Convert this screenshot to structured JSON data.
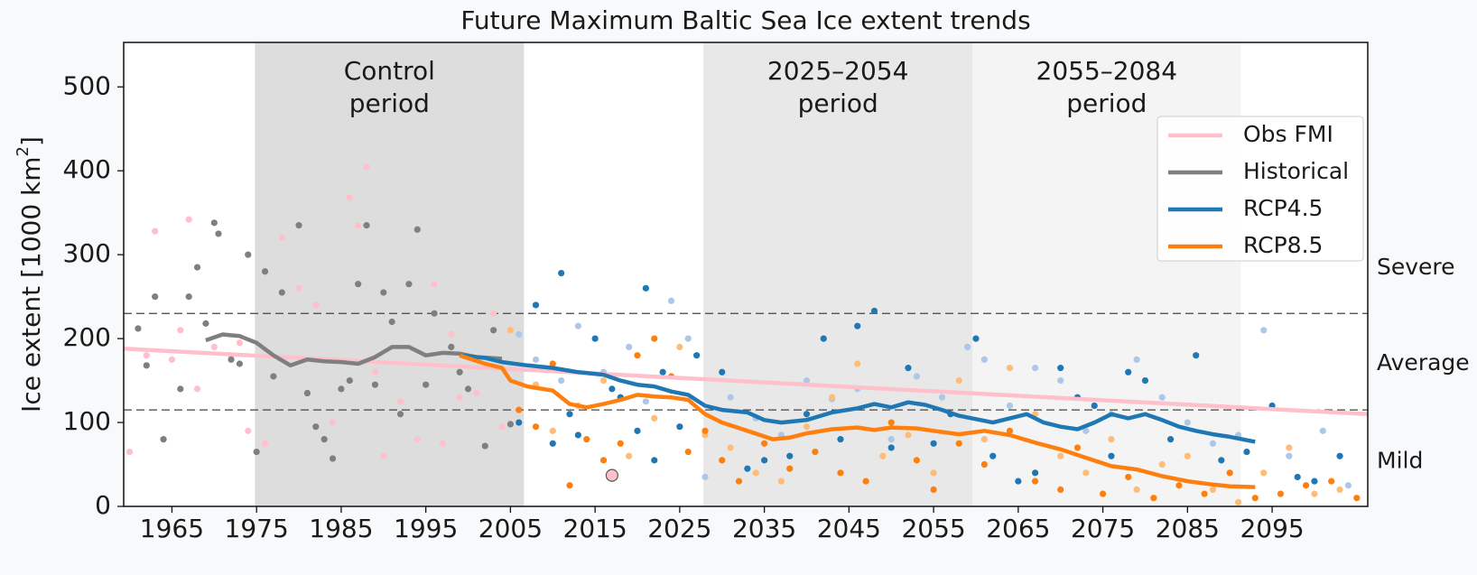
{
  "chart_data": {
    "type": "line",
    "title": "Future Maximum Baltic Sea Ice extent trends",
    "ylabel": [
      "Ice extent [1000 km",
      "2",
      "]"
    ],
    "xlim": [
      1959.3,
      2106.3
    ],
    "ylim": [
      0,
      553
    ],
    "xticks": [
      1965,
      1975,
      1985,
      1995,
      2005,
      2015,
      2025,
      2035,
      2045,
      2055,
      2065,
      2075,
      2085,
      2095
    ],
    "yticks": [
      0,
      100,
      200,
      300,
      400,
      500
    ],
    "legend": "upper right",
    "bands": [
      {
        "lines": [
          "Control",
          "period"
        ],
        "range": [
          1974.8,
          2006.6
        ],
        "color": "#dddddd"
      },
      {
        "lines": [
          "2025–2054",
          "period"
        ],
        "range": [
          2027.8,
          2059.6
        ],
        "color": "#e8e8e8"
      },
      {
        "lines": [
          "2055–2084",
          "period"
        ],
        "range": [
          2059.6,
          2091.3
        ],
        "color": "#f4f4f4"
      }
    ],
    "hlines": [
      230,
      115
    ],
    "regions": [
      {
        "label": "Severe",
        "value": 284
      },
      {
        "label": "Average",
        "value": 170
      },
      {
        "label": "Mild",
        "value": 53
      }
    ],
    "series": [
      {
        "name": "Obs FMI",
        "color": "#ffc0cb",
        "x": [
          1959.3,
          2106.3
        ],
        "values": [
          188,
          110
        ]
      },
      {
        "name": "Historical",
        "color": "#7f7f7f",
        "x": [
          1969,
          1971,
          1973,
          1975,
          1977,
          1979,
          1981,
          1983,
          1985,
          1987,
          1989,
          1991,
          1993,
          1995,
          1997,
          1999,
          2001,
          2004
        ],
        "values": [
          198,
          205,
          203,
          195,
          180,
          168,
          175,
          173,
          172,
          170,
          178,
          190,
          190,
          180,
          183,
          182,
          178,
          176
        ]
      },
      {
        "name": "RCP4.5",
        "color": "#1f77b4",
        "x": [
          1999,
          2002,
          2004,
          2007,
          2010,
          2013,
          2016,
          2018,
          2020,
          2022,
          2024,
          2026,
          2028,
          2030,
          2033,
          2035,
          2037,
          2040,
          2043,
          2046,
          2048,
          2050,
          2052,
          2054,
          2056,
          2058,
          2060,
          2062,
          2064,
          2066,
          2068,
          2070,
          2072,
          2074,
          2076,
          2078,
          2080,
          2082,
          2084,
          2086,
          2088,
          2090,
          2093
        ],
        "values": [
          180,
          177,
          172,
          168,
          165,
          160,
          157,
          150,
          145,
          143,
          137,
          133,
          120,
          115,
          112,
          103,
          100,
          103,
          112,
          117,
          122,
          118,
          124,
          121,
          115,
          108,
          104,
          100,
          105,
          110,
          100,
          95,
          92,
          100,
          110,
          105,
          110,
          103,
          95,
          90,
          86,
          83,
          77
        ]
      },
      {
        "name": "RCP8.5",
        "color": "#ff7f0e",
        "x": [
          1999,
          2002,
          2004,
          2005,
          2007,
          2010,
          2012,
          2014,
          2016,
          2018,
          2020,
          2022,
          2024,
          2026,
          2028,
          2030,
          2033,
          2036,
          2038,
          2040,
          2043,
          2046,
          2048,
          2050,
          2053,
          2055,
          2058,
          2061,
          2064,
          2067,
          2070,
          2073,
          2076,
          2079,
          2082,
          2085,
          2088,
          2090,
          2093
        ],
        "values": [
          180,
          170,
          165,
          150,
          143,
          138,
          122,
          118,
          122,
          127,
          133,
          131,
          130,
          127,
          110,
          100,
          90,
          80,
          82,
          87,
          92,
          94,
          91,
          94,
          93,
          90,
          86,
          90,
          85,
          76,
          68,
          58,
          48,
          44,
          36,
          30,
          26,
          24,
          23
        ]
      }
    ],
    "scatter": [
      {
        "color": "#ffc0cb",
        "x": [
          1960,
          1962,
          1963,
          1966,
          1967,
          1968,
          1970,
          1973,
          1974,
          1976,
          1978,
          1980,
          1982,
          1984,
          1986,
          1987,
          1988,
          1990,
          1992,
          1994,
          1996,
          1997,
          1999,
          2001,
          2003,
          2004,
          1972,
          1989,
          1998,
          1965
        ],
        "values": [
          65,
          180,
          328,
          210,
          342,
          140,
          190,
          195,
          90,
          75,
          320,
          260,
          240,
          100,
          368,
          335,
          405,
          60,
          125,
          80,
          265,
          75,
          130,
          135,
          230,
          95,
          180,
          160,
          205,
          175
        ]
      },
      {
        "color": "#7f7f7f",
        "x": [
          1961,
          1962,
          1963,
          1964,
          1966,
          1967,
          1968,
          1969,
          1970,
          1970.5,
          1972,
          1973,
          1974,
          1975,
          1976,
          1977,
          1978,
          1980,
          1981,
          1982,
          1983,
          1984,
          1985,
          1986,
          1987,
          1988,
          1989,
          1990,
          1991,
          1992,
          1993,
          1994,
          1995,
          1996,
          1998,
          1999,
          2000,
          2002,
          2003,
          2005
        ],
        "values": [
          212,
          168,
          250,
          80,
          140,
          250,
          285,
          218,
          338,
          325,
          175,
          170,
          300,
          65,
          280,
          155,
          255,
          335,
          135,
          95,
          80,
          57,
          140,
          150,
          265,
          335,
          145,
          255,
          220,
          110,
          265,
          330,
          145,
          230,
          190,
          160,
          140,
          72,
          210,
          98
        ]
      },
      {
        "color": "#aec7e8",
        "x": [
          2006,
          2008,
          2011,
          2013,
          2016,
          2019,
          2021,
          2024,
          2026,
          2028,
          2031,
          2034,
          2037,
          2040,
          2043,
          2046,
          2050,
          2053,
          2056,
          2059,
          2061,
          2064,
          2067,
          2070,
          2073,
          2076,
          2079,
          2082,
          2085,
          2088,
          2091,
          2094,
          2097,
          2101,
          2104
        ],
        "values": [
          205,
          175,
          150,
          215,
          160,
          190,
          125,
          245,
          200,
          35,
          130,
          105,
          85,
          150,
          128,
          140,
          80,
          155,
          130,
          190,
          175,
          120,
          165,
          150,
          90,
          110,
          175,
          130,
          100,
          75,
          85,
          210,
          60,
          90,
          25
        ]
      },
      {
        "color": "#1f77b4",
        "x": [
          2006,
          2008,
          2010,
          2011,
          2012,
          2013,
          2015,
          2017,
          2018,
          2020,
          2021,
          2022,
          2023,
          2025,
          2027,
          2030,
          2033,
          2035,
          2038,
          2040,
          2042,
          2044,
          2046,
          2048,
          2050,
          2052,
          2055,
          2057,
          2060,
          2062,
          2065,
          2067,
          2070,
          2072,
          2074,
          2076,
          2078,
          2080,
          2083,
          2086,
          2089,
          2092,
          2095,
          2098,
          2100,
          2103
        ],
        "values": [
          100,
          240,
          75,
          278,
          110,
          85,
          200,
          140,
          130,
          90,
          260,
          55,
          160,
          95,
          180,
          160,
          45,
          55,
          60,
          110,
          200,
          80,
          215,
          233,
          70,
          165,
          75,
          110,
          200,
          60,
          30,
          40,
          165,
          130,
          120,
          60,
          160,
          150,
          80,
          180,
          55,
          65,
          120,
          35,
          30,
          60
        ]
      },
      {
        "color": "#ffbb78",
        "x": [
          2005,
          2008,
          2010,
          2013,
          2016,
          2019,
          2022,
          2025,
          2028,
          2031,
          2034,
          2037,
          2040,
          2043,
          2046,
          2049,
          2052,
          2055,
          2058,
          2061,
          2064,
          2067,
          2070,
          2073,
          2076,
          2079,
          2082,
          2085,
          2088,
          2091,
          2094,
          2097,
          2100,
          2103
        ],
        "values": [
          210,
          145,
          90,
          120,
          150,
          60,
          105,
          190,
          85,
          70,
          40,
          30,
          95,
          130,
          170,
          60,
          85,
          40,
          150,
          80,
          165,
          110,
          60,
          40,
          80,
          20,
          50,
          60,
          20,
          5,
          40,
          70,
          15,
          20
        ]
      },
      {
        "color": "#ff7f0e",
        "x": [
          2006,
          2008,
          2010,
          2012,
          2014,
          2016,
          2018,
          2020,
          2022,
          2024,
          2026,
          2028,
          2030,
          2032,
          2035,
          2038,
          2041,
          2044,
          2047,
          2050,
          2053,
          2055,
          2058,
          2061,
          2064,
          2067,
          2070,
          2072,
          2075,
          2078,
          2081,
          2084,
          2087,
          2090,
          2093,
          2096,
          2099,
          2102,
          2105
        ],
        "values": [
          115,
          95,
          170,
          25,
          80,
          55,
          75,
          180,
          200,
          155,
          65,
          90,
          55,
          30,
          75,
          45,
          65,
          40,
          30,
          100,
          55,
          20,
          75,
          50,
          90,
          30,
          20,
          70,
          15,
          35,
          10,
          25,
          15,
          40,
          10,
          15,
          25,
          30,
          10
        ]
      }
    ],
    "highlight": {
      "x": 2017,
      "value": 37,
      "color": "#ffc0cb",
      "edgecolor": "#555555"
    }
  }
}
